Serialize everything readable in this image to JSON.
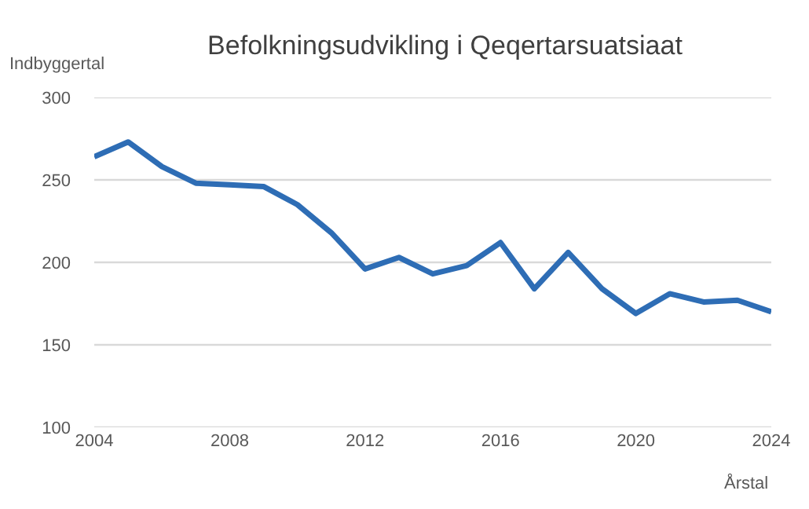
{
  "chart_data": {
    "type": "line",
    "title": "Befolkningsudvikling i Qeqertarsuatsiaat",
    "xlabel": "Årstal",
    "ylabel": "Indbyggertal",
    "x": [
      2004,
      2005,
      2006,
      2007,
      2008,
      2009,
      2010,
      2011,
      2012,
      2013,
      2014,
      2015,
      2016,
      2017,
      2018,
      2019,
      2020,
      2021,
      2022,
      2023,
      2024
    ],
    "series": [
      {
        "color": "#2e6db5",
        "values": [
          264,
          273,
          258,
          248,
          247,
          246,
          235,
          218,
          196,
          203,
          193,
          198,
          212,
          184,
          206,
          184,
          169,
          181,
          176,
          177,
          170
        ]
      }
    ],
    "xlim": [
      2004,
      2024
    ],
    "xticks": [
      2004,
      2008,
      2012,
      2016,
      2020,
      2024
    ],
    "ylim": [
      100,
      300
    ],
    "yticks": [
      100,
      150,
      200,
      250,
      300
    ],
    "grid": "y",
    "marker": "none",
    "line_style": "solid"
  }
}
